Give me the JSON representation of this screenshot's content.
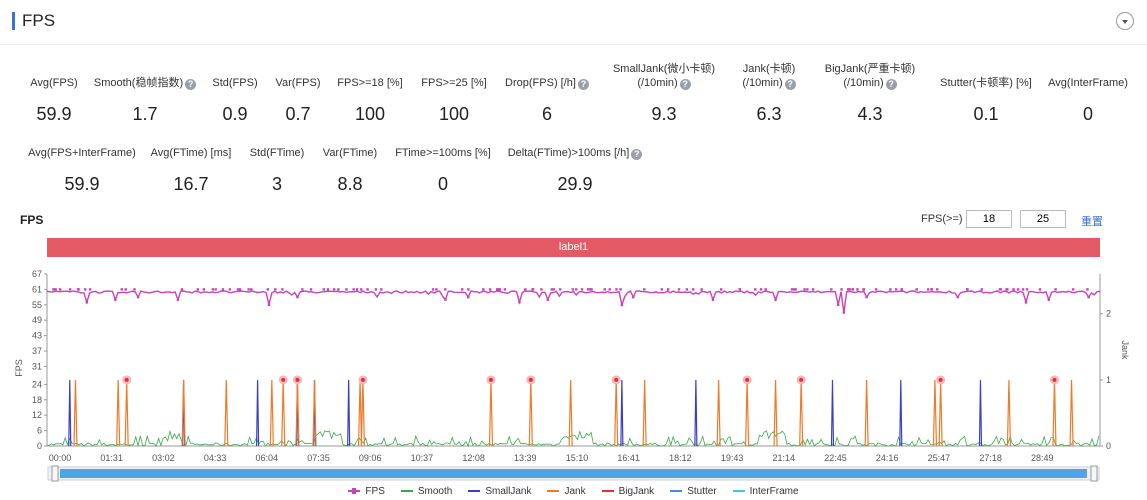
{
  "header": {
    "title": "FPS"
  },
  "metrics_row1": [
    {
      "label": "Avg(FPS)",
      "value": "59.9",
      "help": false,
      "cx": 54
    },
    {
      "label": "Smooth(稳帧指数)",
      "value": "1.7",
      "help": true,
      "cx": 145
    },
    {
      "label": "Std(FPS)",
      "value": "0.9",
      "help": false,
      "cx": 235
    },
    {
      "label": "Var(FPS)",
      "value": "0.7",
      "help": false,
      "cx": 298
    },
    {
      "label": "FPS>=18 [%]",
      "value": "100",
      "help": false,
      "cx": 370
    },
    {
      "label": "FPS>=25 [%]",
      "value": "100",
      "help": false,
      "cx": 454
    },
    {
      "label": "Drop(FPS) [/h]",
      "value": "6",
      "help": true,
      "cx": 547
    },
    {
      "label": "SmallJank(微小卡顿)\n(/10min)",
      "value": "9.3",
      "help": true,
      "cx": 664
    },
    {
      "label": "Jank(卡顿)\n(/10min)",
      "value": "6.3",
      "help": true,
      "cx": 769
    },
    {
      "label": "BigJank(严重卡顿)\n(/10min)",
      "value": "4.3",
      "help": true,
      "cx": 870
    },
    {
      "label": "Stutter(卡顿率) [%]",
      "value": "0.1",
      "help": false,
      "cx": 986
    },
    {
      "label": "Avg(InterFrame)",
      "value": "0",
      "help": false,
      "cx": 1088
    }
  ],
  "metrics_row2": [
    {
      "label": "Avg(FPS+InterFrame)",
      "value": "59.9",
      "help": false,
      "cx": 82
    },
    {
      "label": "Avg(FTime) [ms]",
      "value": "16.7",
      "help": false,
      "cx": 191
    },
    {
      "label": "Std(FTime)",
      "value": "3",
      "help": false,
      "cx": 277
    },
    {
      "label": "Var(FTime)",
      "value": "8.8",
      "help": false,
      "cx": 350
    },
    {
      "label": "FTime>=100ms [%]",
      "value": "0",
      "help": false,
      "cx": 443
    },
    {
      "label": "Delta(FTime)>100ms [/h]",
      "value": "29.9",
      "help": true,
      "cx": 575
    }
  ],
  "chart_header": {
    "title": "FPS",
    "threshold_label": "FPS(>=)",
    "threshold_1": "18",
    "threshold_2": "25",
    "reset_label": "重置"
  },
  "label_band": "label1",
  "legend": [
    {
      "name": "FPS",
      "color": "#c743b8"
    },
    {
      "name": "Smooth",
      "color": "#3aa84a"
    },
    {
      "name": "SmallJank",
      "color": "#3a3fc4"
    },
    {
      "name": "Jank",
      "color": "#f07a2a"
    },
    {
      "name": "BigJank",
      "color": "#e0303a"
    },
    {
      "name": "Stutter",
      "color": "#4b86e0"
    },
    {
      "name": "InterFrame",
      "color": "#3cc9d0"
    }
  ],
  "chart_data": {
    "type": "line",
    "ylabel": "FPS",
    "y2label": "Jank",
    "y_ticks": [
      0,
      6,
      12,
      18,
      24,
      31,
      37,
      43,
      49,
      55,
      61,
      67
    ],
    "y2_ticks": [
      0,
      1,
      2
    ],
    "x_ticks": [
      "00:00",
      "01:31",
      "03:02",
      "04:33",
      "06:04",
      "07:35",
      "09:06",
      "10:37",
      "12:08",
      "13:39",
      "15:10",
      "16:41",
      "18:12",
      "19:43",
      "21:14",
      "22:45",
      "24:16",
      "25:47",
      "27:18",
      "28:49"
    ],
    "x_range_seconds": [
      0,
      1850
    ],
    "fps_baseline": 60,
    "fps_dips": [
      [
        70,
        56
      ],
      [
        120,
        57
      ],
      [
        160,
        58
      ],
      [
        230,
        57
      ],
      [
        390,
        55
      ],
      [
        440,
        58
      ],
      [
        700,
        57
      ],
      [
        740,
        58
      ],
      [
        830,
        56
      ],
      [
        880,
        57
      ],
      [
        1010,
        55
      ],
      [
        1030,
        58
      ],
      [
        1170,
        57
      ],
      [
        1280,
        57
      ],
      [
        1390,
        55
      ],
      [
        1400,
        52
      ],
      [
        1440,
        58
      ],
      [
        1600,
        58
      ],
      [
        1720,
        56
      ],
      [
        1760,
        57
      ],
      [
        1830,
        58
      ]
    ],
    "small_jank_s": [
      40,
      240,
      370,
      440,
      470,
      530,
      1010,
      1140,
      1380,
      1500,
      1640
    ],
    "jank_s": [
      50,
      125,
      240,
      315,
      395,
      470,
      550,
      920,
      1050,
      1180,
      1280,
      1440,
      1560,
      1690,
      1800
    ],
    "big_jank_s": [
      140,
      415,
      440,
      555,
      780,
      850,
      1000,
      1230,
      1325,
      1570,
      1770
    ],
    "series": [
      {
        "name": "FPS"
      },
      {
        "name": "Smooth"
      },
      {
        "name": "SmallJank"
      },
      {
        "name": "Jank"
      },
      {
        "name": "BigJank"
      },
      {
        "name": "Stutter"
      },
      {
        "name": "InterFrame"
      }
    ]
  }
}
